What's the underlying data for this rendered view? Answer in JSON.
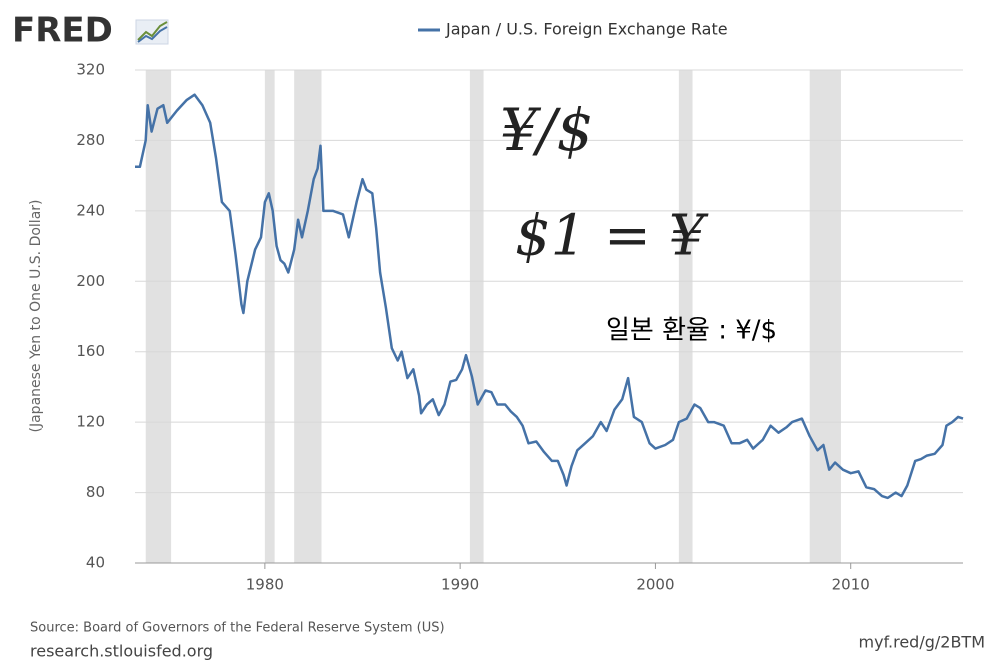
{
  "chart_data": {
    "type": "line",
    "logo": "FRED",
    "legend_label": "Japan / U.S. Foreign Exchange Rate",
    "y_label": "(Japanese Yen to One U.S. Dollar)",
    "source": "Source: Board of Governors of the Federal Reserve System (US)",
    "source_url": "research.stlouisfed.org",
    "short_url": "myf.red/g/2BTM",
    "annotations": [
      "¥/$",
      "$1 = ¥",
      "일본 환율 : ¥/$"
    ],
    "xlim": [
      1973.35,
      2015.75
    ],
    "xticks": [
      1980,
      1990,
      2000,
      2010
    ],
    "ylim": [
      40,
      320
    ],
    "yticks": [
      40,
      80,
      120,
      160,
      200,
      240,
      280,
      320
    ],
    "grid": true,
    "recession_color": "#e1e1e1",
    "recessions": [
      [
        1973.9,
        1975.2
      ],
      [
        1980.0,
        1980.5
      ],
      [
        1981.5,
        1982.9
      ],
      [
        1990.5,
        1991.2
      ],
      [
        2001.2,
        2001.9
      ],
      [
        2007.9,
        2009.5
      ]
    ],
    "series": [
      {
        "name": "Japan / U.S. Foreign Exchange Rate",
        "color": "#4572a7",
        "x": [
          1973.35,
          1973.6,
          1973.9,
          1974.0,
          1974.2,
          1974.5,
          1974.8,
          1975.0,
          1975.5,
          1976.0,
          1976.4,
          1976.8,
          1977.2,
          1977.5,
          1977.8,
          1978.2,
          1978.5,
          1978.8,
          1978.9,
          1979.1,
          1979.5,
          1979.8,
          1980.0,
          1980.2,
          1980.4,
          1980.6,
          1980.8,
          1981.0,
          1981.2,
          1981.5,
          1981.7,
          1981.9,
          1982.2,
          1982.5,
          1982.7,
          1982.85,
          1983.0,
          1983.5,
          1984.0,
          1984.3,
          1984.7,
          1985.0,
          1985.2,
          1985.5,
          1985.7,
          1985.9,
          1986.2,
          1986.5,
          1986.8,
          1987.0,
          1987.3,
          1987.6,
          1987.9,
          1988.0,
          1988.3,
          1988.6,
          1988.9,
          1989.2,
          1989.5,
          1989.8,
          1990.1,
          1990.3,
          1990.6,
          1990.9,
          1991.3,
          1991.6,
          1991.9,
          1992.3,
          1992.6,
          1992.9,
          1993.2,
          1993.5,
          1993.9,
          1994.3,
          1994.7,
          1995.0,
          1995.3,
          1995.45,
          1995.7,
          1996.0,
          1996.4,
          1996.8,
          1997.2,
          1997.5,
          1997.9,
          1998.3,
          1998.6,
          1998.9,
          1999.3,
          1999.7,
          2000.0,
          2000.5,
          2000.9,
          2001.2,
          2001.6,
          2002.0,
          2002.3,
          2002.7,
          2003.0,
          2003.5,
          2003.9,
          2004.3,
          2004.7,
          2005.0,
          2005.5,
          2005.9,
          2006.3,
          2006.7,
          2007.0,
          2007.5,
          2007.9,
          2008.3,
          2008.6,
          2008.9,
          2009.2,
          2009.6,
          2010.0,
          2010.4,
          2010.8,
          2011.2,
          2011.6,
          2011.9,
          2012.3,
          2012.6,
          2012.9,
          2013.3,
          2013.6,
          2013.9,
          2014.3,
          2014.7,
          2014.9,
          2015.2,
          2015.5,
          2015.75
        ],
        "values": [
          265,
          265,
          280,
          300,
          285,
          298,
          300,
          290,
          297,
          303,
          306,
          300,
          290,
          270,
          245,
          240,
          215,
          187,
          182,
          200,
          218,
          225,
          245,
          250,
          240,
          220,
          212,
          210,
          205,
          218,
          235,
          225,
          240,
          258,
          264,
          277,
          240,
          240,
          238,
          225,
          245,
          258,
          252,
          250,
          230,
          205,
          185,
          162,
          155,
          160,
          145,
          150,
          135,
          125,
          130,
          133,
          124,
          130,
          143,
          144,
          150,
          158,
          146,
          130,
          138,
          137,
          130,
          130,
          126,
          123,
          118,
          108,
          109,
          103,
          98,
          98,
          90,
          84,
          95,
          104,
          108,
          112,
          120,
          115,
          127,
          133,
          145,
          123,
          120,
          108,
          105,
          107,
          110,
          120,
          122,
          130,
          128,
          120,
          120,
          118,
          108,
          108,
          110,
          105,
          110,
          118,
          114,
          117,
          120,
          122,
          112,
          104,
          107,
          93,
          97,
          93,
          91,
          92,
          83,
          82,
          78,
          77,
          80,
          78,
          84,
          98,
          99,
          101,
          102,
          107,
          118,
          120,
          123,
          122
        ]
      }
    ]
  }
}
